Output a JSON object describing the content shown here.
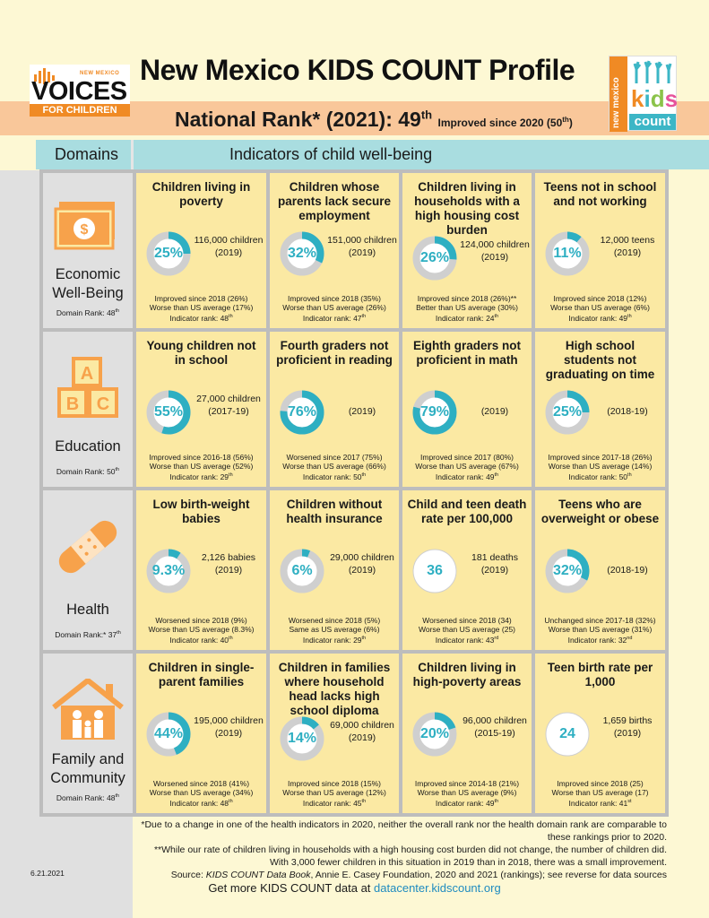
{
  "header": {
    "title": "New Mexico KIDS COUNT Profile",
    "rank_main": "National Rank* (2021): 49",
    "rank_sup": "th",
    "rank_improved": "Improved since 2020 (50",
    "rank_improved_sup": "th",
    "rank_improved_close": ")"
  },
  "logos": {
    "voices_top": "NEW MEXICO",
    "voices_main": "VOICES",
    "voices_sub": "FOR CHILDREN",
    "kids_side": "new mexico",
    "kids_word": [
      "k",
      "i",
      "d",
      "s"
    ],
    "kids_count": "count"
  },
  "table_header": {
    "domains": "Domains",
    "indicators": "Indicators of child well-being"
  },
  "domains": [
    {
      "name_l1": "Economic",
      "name_l2": "Well-Being",
      "rank": "Domain Rank: 48",
      "rank_sup": "th",
      "icon": "money-icon"
    },
    {
      "name_l1": "Education",
      "name_l2": "",
      "rank": "Domain Rank: 50",
      "rank_sup": "th",
      "icon": "abc-blocks-icon"
    },
    {
      "name_l1": "Health",
      "name_l2": "",
      "rank": "Domain Rank:* 37",
      "rank_sup": "th",
      "icon": "bandage-icon"
    },
    {
      "name_l1": "Family and",
      "name_l2": "Community",
      "rank": "Domain Rank: 48",
      "rank_sup": "th",
      "icon": "house-family-icon"
    }
  ],
  "indicators": [
    [
      {
        "title": "Children living in poverty",
        "value": "25%",
        "pct": 25,
        "stat1": "116,000 children",
        "stat2": "(2019)",
        "n1": "Improved since 2018 (26%)",
        "n2": "Worse than US average (17%)",
        "n3": "Indicator rank: 48",
        "n3sup": "th"
      },
      {
        "title": "Children whose parents lack secure employment",
        "value": "32%",
        "pct": 32,
        "stat1": "151,000 children",
        "stat2": "(2019)",
        "n1": "Improved since 2018 (35%)",
        "n2": "Worse than US average (26%)",
        "n3": "Indicator rank: 47",
        "n3sup": "th"
      },
      {
        "title": "Children living in households with a high housing cost burden",
        "value": "26%",
        "pct": 26,
        "stat1": "124,000 children",
        "stat2": "(2019)",
        "n1": "Improved since 2018 (26%)**",
        "n2": "Better than US average (30%)",
        "n3": "Indicator rank: 24",
        "n3sup": "th"
      },
      {
        "title": "Teens not in school and not working",
        "value": "11%",
        "pct": 11,
        "stat1": "12,000 teens",
        "stat2": "(2019)",
        "n1": "Improved since 2018 (12%)",
        "n2": "Worse than US average (6%)",
        "n3": "Indicator rank: 49",
        "n3sup": "th"
      }
    ],
    [
      {
        "title": "Young children not in school",
        "value": "55%",
        "pct": 55,
        "stat1": "27,000 children",
        "stat2": "(2017-19)",
        "n1": "Improved since 2016-18 (56%)",
        "n2": "Worse than US average (52%)",
        "n3": "Indicator rank: 29",
        "n3sup": "th"
      },
      {
        "title": "Fourth graders not proficient in reading",
        "value": "76%",
        "pct": 76,
        "stat1": "(2019)",
        "stat2": "",
        "n1": "Worsened since 2017 (75%)",
        "n2": "Worse than US average (66%)",
        "n3": "Indicator rank: 50",
        "n3sup": "th"
      },
      {
        "title": "Eighth graders not proficient in math",
        "value": "79%",
        "pct": 79,
        "stat1": "(2019)",
        "stat2": "",
        "n1": "Improved since 2017 (80%)",
        "n2": "Worse than US average (67%)",
        "n3": "Indicator rank: 49",
        "n3sup": "th"
      },
      {
        "title": "High school students not graduating on time",
        "value": "25%",
        "pct": 25,
        "stat1": "(2018-19)",
        "stat2": "",
        "n1": "Improved since 2017-18 (26%)",
        "n2": "Worse than US average (14%)",
        "n3": "Indicator rank: 50",
        "n3sup": "th"
      }
    ],
    [
      {
        "title": "Low birth-weight babies",
        "value": "9.3%",
        "pct": 9.3,
        "stat1": "2,126 babies",
        "stat2": "(2019)",
        "n1": "Worsened since 2018 (9%)",
        "n2": "Worse than US average (8.3%)",
        "n3": "Indicator rank: 40",
        "n3sup": "th"
      },
      {
        "title": "Children without health insurance",
        "value": "6%",
        "pct": 6,
        "stat1": "29,000 children",
        "stat2": "(2019)",
        "n1": "Worsened since 2018 (5%)",
        "n2": "Same as US average (6%)",
        "n3": "Indicator rank: 29",
        "n3sup": "th"
      },
      {
        "title": "Child and teen death rate per 100,000",
        "value": "36",
        "pct": null,
        "stat1": "181 deaths",
        "stat2": "(2019)",
        "n1": "Worsened since 2018 (34)",
        "n2": "Worse than US average (25)",
        "n3": "Indicator rank: 43",
        "n3sup": "rd"
      },
      {
        "title": "Teens who are overweight or obese",
        "value": "32%",
        "pct": 32,
        "stat1": "(2018-19)",
        "stat2": "",
        "n1": "Unchanged since 2017-18 (32%)",
        "n2": "Worse than US average (31%)",
        "n3": "Indicator rank: 32",
        "n3sup": "nd"
      }
    ],
    [
      {
        "title": "Children in single-parent families",
        "value": "44%",
        "pct": 44,
        "stat1": "195,000 children",
        "stat2": "(2019)",
        "n1": "Worsened since 2018 (41%)",
        "n2": "Worse than US average (34%)",
        "n3": "Indicator rank: 48",
        "n3sup": "th"
      },
      {
        "title": "Children in families where household head lacks high school diploma",
        "value": "14%",
        "pct": 14,
        "stat1": "69,000 children",
        "stat2": "(2019)",
        "n1": "Improved since 2018 (15%)",
        "n2": "Worse than US average (12%)",
        "n3": "Indicator rank: 45",
        "n3sup": "th"
      },
      {
        "title": "Children living in high-poverty areas",
        "value": "20%",
        "pct": 20,
        "stat1": "96,000 children",
        "stat2": "(2015-19)",
        "n1": "Improved since 2014-18 (21%)",
        "n2": "Worse than US average (9%)",
        "n3": "Indicator rank: 49",
        "n3sup": "th"
      },
      {
        "title": "Teen birth rate per 1,000",
        "value": "24",
        "pct": null,
        "stat1": "1,659 births",
        "stat2": "(2019)",
        "n1": "Improved since 2018 (25)",
        "n2": "Worse than US average (17)",
        "n3": "Indicator rank: 41",
        "n3sup": "st"
      }
    ]
  ],
  "footnotes": {
    "f1a": "*Due to a change in one of the health indicators in 2020, neither the overall rank nor the health domain rank are comparable to",
    "f1b": "these rankings prior to 2020.",
    "f2a": "**While our rate of children living in households with a high housing cost burden did not change, the number of children did.",
    "f2b": "With 3,000 fewer children in this situation in 2019 than in 2018, there was a small improvement.",
    "source_prefix": "Source: ",
    "source_italic": "KIDS COUNT Data Book",
    "source_rest": ", Annie E. Casey Foundation, 2020 and 2021 (rankings); see reverse for data sources",
    "date": "6.21.2021",
    "more_text": "Get more KIDS COUNT data at ",
    "more_link": "datacenter.kidscount.org"
  },
  "colors": {
    "accent_teal": "#2eafc2",
    "ring_gray": "#cfcfcf",
    "cell_bg": "#fbe9a3",
    "icon_orange": "#f7a24b"
  }
}
